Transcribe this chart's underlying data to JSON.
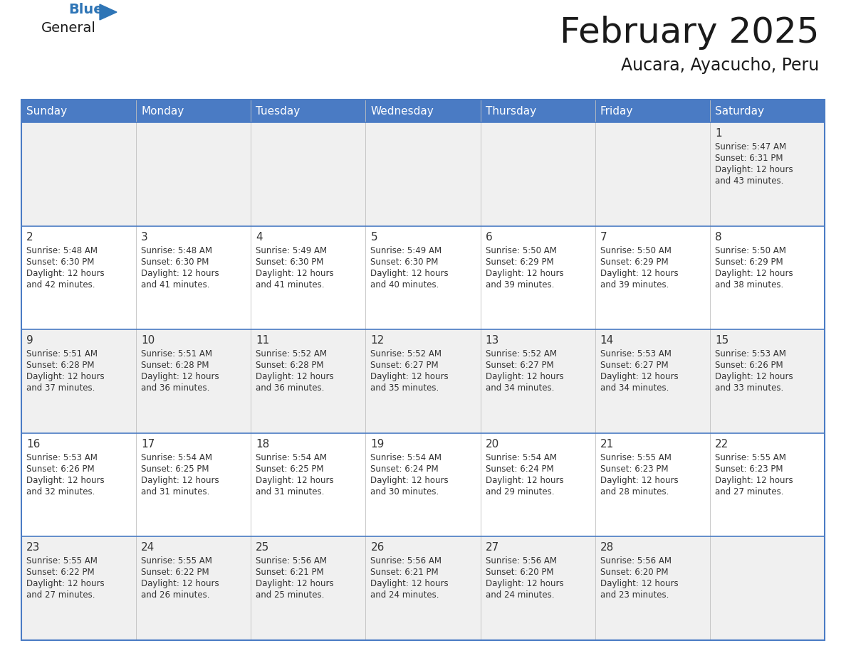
{
  "title": "February 2025",
  "subtitle": "Aucara, Ayacucho, Peru",
  "days_of_week": [
    "Sunday",
    "Monday",
    "Tuesday",
    "Wednesday",
    "Thursday",
    "Friday",
    "Saturday"
  ],
  "header_bg": "#4A7BC4",
  "header_text": "#FFFFFF",
  "cell_bg_odd": "#F0F0F0",
  "cell_bg_even": "#FFFFFF",
  "cell_text": "#333333",
  "line_color": "#4A7BC4",
  "title_color": "#1a1a1a",
  "subtitle_color": "#1a1a1a",
  "logo_general_color": "#1a1a1a",
  "logo_blue_color": "#2E75B6",
  "weeks": [
    [
      {
        "day": null,
        "sunrise": null,
        "sunset": null,
        "daylight": null
      },
      {
        "day": null,
        "sunrise": null,
        "sunset": null,
        "daylight": null
      },
      {
        "day": null,
        "sunrise": null,
        "sunset": null,
        "daylight": null
      },
      {
        "day": null,
        "sunrise": null,
        "sunset": null,
        "daylight": null
      },
      {
        "day": null,
        "sunrise": null,
        "sunset": null,
        "daylight": null
      },
      {
        "day": null,
        "sunrise": null,
        "sunset": null,
        "daylight": null
      },
      {
        "day": 1,
        "sunrise": "5:47 AM",
        "sunset": "6:31 PM",
        "daylight": "12 hours and 43 minutes."
      }
    ],
    [
      {
        "day": 2,
        "sunrise": "5:48 AM",
        "sunset": "6:30 PM",
        "daylight": "12 hours and 42 minutes."
      },
      {
        "day": 3,
        "sunrise": "5:48 AM",
        "sunset": "6:30 PM",
        "daylight": "12 hours and 41 minutes."
      },
      {
        "day": 4,
        "sunrise": "5:49 AM",
        "sunset": "6:30 PM",
        "daylight": "12 hours and 41 minutes."
      },
      {
        "day": 5,
        "sunrise": "5:49 AM",
        "sunset": "6:30 PM",
        "daylight": "12 hours and 40 minutes."
      },
      {
        "day": 6,
        "sunrise": "5:50 AM",
        "sunset": "6:29 PM",
        "daylight": "12 hours and 39 minutes."
      },
      {
        "day": 7,
        "sunrise": "5:50 AM",
        "sunset": "6:29 PM",
        "daylight": "12 hours and 39 minutes."
      },
      {
        "day": 8,
        "sunrise": "5:50 AM",
        "sunset": "6:29 PM",
        "daylight": "12 hours and 38 minutes."
      }
    ],
    [
      {
        "day": 9,
        "sunrise": "5:51 AM",
        "sunset": "6:28 PM",
        "daylight": "12 hours and 37 minutes."
      },
      {
        "day": 10,
        "sunrise": "5:51 AM",
        "sunset": "6:28 PM",
        "daylight": "12 hours and 36 minutes."
      },
      {
        "day": 11,
        "sunrise": "5:52 AM",
        "sunset": "6:28 PM",
        "daylight": "12 hours and 36 minutes."
      },
      {
        "day": 12,
        "sunrise": "5:52 AM",
        "sunset": "6:27 PM",
        "daylight": "12 hours and 35 minutes."
      },
      {
        "day": 13,
        "sunrise": "5:52 AM",
        "sunset": "6:27 PM",
        "daylight": "12 hours and 34 minutes."
      },
      {
        "day": 14,
        "sunrise": "5:53 AM",
        "sunset": "6:27 PM",
        "daylight": "12 hours and 34 minutes."
      },
      {
        "day": 15,
        "sunrise": "5:53 AM",
        "sunset": "6:26 PM",
        "daylight": "12 hours and 33 minutes."
      }
    ],
    [
      {
        "day": 16,
        "sunrise": "5:53 AM",
        "sunset": "6:26 PM",
        "daylight": "12 hours and 32 minutes."
      },
      {
        "day": 17,
        "sunrise": "5:54 AM",
        "sunset": "6:25 PM",
        "daylight": "12 hours and 31 minutes."
      },
      {
        "day": 18,
        "sunrise": "5:54 AM",
        "sunset": "6:25 PM",
        "daylight": "12 hours and 31 minutes."
      },
      {
        "day": 19,
        "sunrise": "5:54 AM",
        "sunset": "6:24 PM",
        "daylight": "12 hours and 30 minutes."
      },
      {
        "day": 20,
        "sunrise": "5:54 AM",
        "sunset": "6:24 PM",
        "daylight": "12 hours and 29 minutes."
      },
      {
        "day": 21,
        "sunrise": "5:55 AM",
        "sunset": "6:23 PM",
        "daylight": "12 hours and 28 minutes."
      },
      {
        "day": 22,
        "sunrise": "5:55 AM",
        "sunset": "6:23 PM",
        "daylight": "12 hours and 27 minutes."
      }
    ],
    [
      {
        "day": 23,
        "sunrise": "5:55 AM",
        "sunset": "6:22 PM",
        "daylight": "12 hours and 27 minutes."
      },
      {
        "day": 24,
        "sunrise": "5:55 AM",
        "sunset": "6:22 PM",
        "daylight": "12 hours and 26 minutes."
      },
      {
        "day": 25,
        "sunrise": "5:56 AM",
        "sunset": "6:21 PM",
        "daylight": "12 hours and 25 minutes."
      },
      {
        "day": 26,
        "sunrise": "5:56 AM",
        "sunset": "6:21 PM",
        "daylight": "12 hours and 24 minutes."
      },
      {
        "day": 27,
        "sunrise": "5:56 AM",
        "sunset": "6:20 PM",
        "daylight": "12 hours and 24 minutes."
      },
      {
        "day": 28,
        "sunrise": "5:56 AM",
        "sunset": "6:20 PM",
        "daylight": "12 hours and 23 minutes."
      },
      {
        "day": null,
        "sunrise": null,
        "sunset": null,
        "daylight": null
      }
    ]
  ]
}
